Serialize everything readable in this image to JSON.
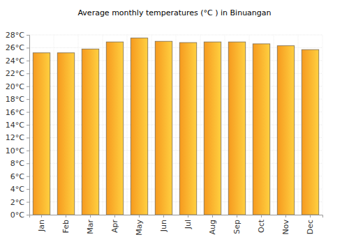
{
  "chart_data": {
    "type": "bar",
    "title": "Average monthly temperatures (°C ) in Binuangan",
    "categories": [
      "Jan",
      "Feb",
      "Mar",
      "Apr",
      "May",
      "Jun",
      "Jul",
      "Aug",
      "Sep",
      "Oct",
      "Nov",
      "Dec"
    ],
    "values": [
      25.2,
      25.2,
      25.8,
      26.9,
      27.5,
      27.0,
      26.8,
      26.9,
      26.9,
      26.6,
      26.3,
      25.7
    ],
    "color": "#ffa020",
    "ylim": [
      0,
      28
    ],
    "yticks": [
      {
        "value": 0,
        "label": "0°C"
      },
      {
        "value": 2,
        "label": "2°C"
      },
      {
        "value": 4,
        "label": "4°C"
      },
      {
        "value": 6,
        "label": "6°C"
      },
      {
        "value": 8,
        "label": "8°C"
      },
      {
        "value": 10,
        "label": "10°C"
      },
      {
        "value": 12,
        "label": "12°C"
      },
      {
        "value": 14,
        "label": "14°C"
      },
      {
        "value": 16,
        "label": "16°C"
      },
      {
        "value": 18,
        "label": "18°C"
      },
      {
        "value": 20,
        "label": "20°C"
      },
      {
        "value": 22,
        "label": "22°C"
      },
      {
        "value": 24,
        "label": "24°C"
      },
      {
        "value": 26,
        "label": "26°C"
      },
      {
        "value": 28,
        "label": "28°C"
      }
    ],
    "grid": true
  }
}
